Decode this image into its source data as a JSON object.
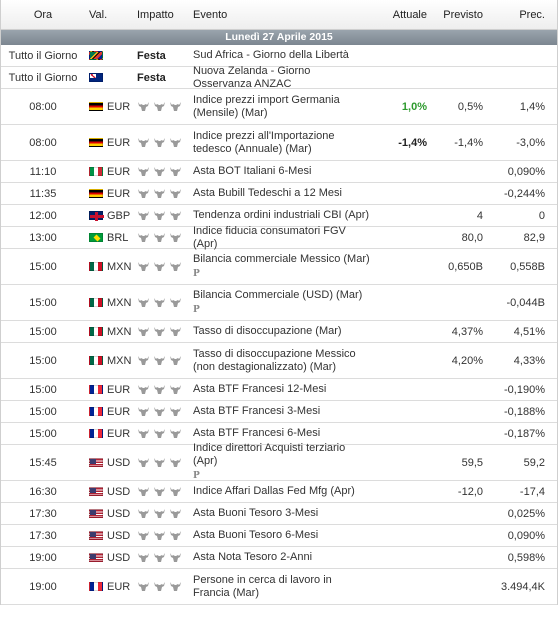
{
  "header": {
    "time": "Ora",
    "currency": "Val.",
    "impact": "Impatto",
    "event": "Evento",
    "actual": "Attuale",
    "forecast": "Previsto",
    "previous": "Prec."
  },
  "date_label": "Lunedì 27 Aprile 2015",
  "colors": {
    "actual_positive": "#2e9a2e",
    "date_band": "#8b949d"
  },
  "rows": [
    {
      "time": "Tutto il Giorno",
      "flag": "za",
      "currency": "",
      "holiday": "Festa",
      "event": "Sud Africa - Giorno della Libertà",
      "actual": "",
      "forecast": "",
      "previous": "",
      "tall": false,
      "ptag": ""
    },
    {
      "time": "Tutto il Giorno",
      "flag": "nz",
      "currency": "",
      "holiday": "Festa",
      "event": "Nuova Zelanda - Giorno Osservanza ANZAC",
      "actual": "",
      "forecast": "",
      "previous": "",
      "tall": false,
      "ptag": ""
    },
    {
      "time": "08:00",
      "flag": "de",
      "currency": "EUR",
      "holiday": "",
      "event": "Indice prezzi import Germania (Mensile) (Mar)",
      "actual": "1,0%",
      "actual_tone": "good",
      "forecast": "0,5%",
      "previous": "1,4%",
      "tall": true,
      "ptag": ""
    },
    {
      "time": "08:00",
      "flag": "de",
      "currency": "EUR",
      "holiday": "",
      "event": "Indice prezzi all'Importazione tedesco (Annuale) (Mar)",
      "actual": "-1,4%",
      "actual_tone": "bad",
      "forecast": "-1,4%",
      "previous": "-3,0%",
      "tall": true,
      "ptag": ""
    },
    {
      "time": "11:10",
      "flag": "it",
      "currency": "EUR",
      "holiday": "",
      "event": "Asta BOT Italiani 6-Mesi",
      "actual": "",
      "forecast": "",
      "previous": "0,090%",
      "tall": false,
      "ptag": ""
    },
    {
      "time": "11:35",
      "flag": "de",
      "currency": "EUR",
      "holiday": "",
      "event": "Asta Bubill Tedeschi a 12 Mesi",
      "actual": "",
      "forecast": "",
      "previous": "-0,244%",
      "tall": false,
      "ptag": ""
    },
    {
      "time": "12:00",
      "flag": "gb",
      "currency": "GBP",
      "holiday": "",
      "event": "Tendenza ordini industriali CBI (Apr)",
      "actual": "",
      "forecast": "4",
      "previous": "0",
      "tall": false,
      "ptag": ""
    },
    {
      "time": "13:00",
      "flag": "br",
      "currency": "BRL",
      "holiday": "",
      "event": "Indice fiducia consumatori FGV (Apr)",
      "actual": "",
      "forecast": "80,0",
      "previous": "82,9",
      "tall": false,
      "ptag": ""
    },
    {
      "time": "15:00",
      "flag": "mx",
      "currency": "MXN",
      "holiday": "",
      "event": "Bilancia commerciale Messico (Mar)",
      "actual": "",
      "forecast": "0,650B",
      "previous": "0,558B",
      "tall": true,
      "ptag": "P"
    },
    {
      "time": "15:00",
      "flag": "mx",
      "currency": "MXN",
      "holiday": "",
      "event": "Bilancia Commerciale (USD) (Mar)",
      "actual": "",
      "forecast": "",
      "previous": "-0,044B",
      "tall": true,
      "ptag": "P"
    },
    {
      "time": "15:00",
      "flag": "mx",
      "currency": "MXN",
      "holiday": "",
      "event": "Tasso di disoccupazione (Mar)",
      "actual": "",
      "forecast": "4,37%",
      "previous": "4,51%",
      "tall": false,
      "ptag": ""
    },
    {
      "time": "15:00",
      "flag": "mx",
      "currency": "MXN",
      "holiday": "",
      "event": "Tasso di disoccupazione Messico (non destagionalizzato) (Mar)",
      "actual": "",
      "forecast": "4,20%",
      "previous": "4,33%",
      "tall": true,
      "ptag": ""
    },
    {
      "time": "15:00",
      "flag": "fr",
      "currency": "EUR",
      "holiday": "",
      "event": "Asta BTF Francesi 12-Mesi",
      "actual": "",
      "forecast": "",
      "previous": "-0,190%",
      "tall": false,
      "ptag": ""
    },
    {
      "time": "15:00",
      "flag": "fr",
      "currency": "EUR",
      "holiday": "",
      "event": "Asta BTF Francesi 3-Mesi",
      "actual": "",
      "forecast": "",
      "previous": "-0,188%",
      "tall": false,
      "ptag": ""
    },
    {
      "time": "15:00",
      "flag": "fr",
      "currency": "EUR",
      "holiday": "",
      "event": "Asta BTF Francesi 6-Mesi",
      "actual": "",
      "forecast": "",
      "previous": "-0,187%",
      "tall": false,
      "ptag": ""
    },
    {
      "time": "15:45",
      "flag": "us",
      "currency": "USD",
      "holiday": "",
      "event": "Indice direttori Acquisti terziario (Apr)",
      "actual": "",
      "forecast": "59,5",
      "previous": "59,2",
      "tall": true,
      "ptag": "P"
    },
    {
      "time": "16:30",
      "flag": "us",
      "currency": "USD",
      "holiday": "",
      "event": "Indice Affari Dallas Fed Mfg (Apr)",
      "actual": "",
      "forecast": "-12,0",
      "previous": "-17,4",
      "tall": false,
      "ptag": ""
    },
    {
      "time": "17:30",
      "flag": "us",
      "currency": "USD",
      "holiday": "",
      "event": "Asta Buoni Tesoro 3-Mesi",
      "actual": "",
      "forecast": "",
      "previous": "0,025%",
      "tall": false,
      "ptag": ""
    },
    {
      "time": "17:30",
      "flag": "us",
      "currency": "USD",
      "holiday": "",
      "event": "Asta Buoni Tesoro 6-Mesi",
      "actual": "",
      "forecast": "",
      "previous": "0,090%",
      "tall": false,
      "ptag": ""
    },
    {
      "time": "19:00",
      "flag": "us",
      "currency": "USD",
      "holiday": "",
      "event": "Asta Nota Tesoro 2-Anni",
      "actual": "",
      "forecast": "",
      "previous": "0,598%",
      "tall": false,
      "ptag": ""
    },
    {
      "time": "19:00",
      "flag": "fr",
      "currency": "EUR",
      "holiday": "",
      "event": "Persone in cerca di lavoro in Francia (Mar)",
      "actual": "",
      "forecast": "",
      "previous": "3.494,4K",
      "tall": true,
      "ptag": ""
    }
  ]
}
